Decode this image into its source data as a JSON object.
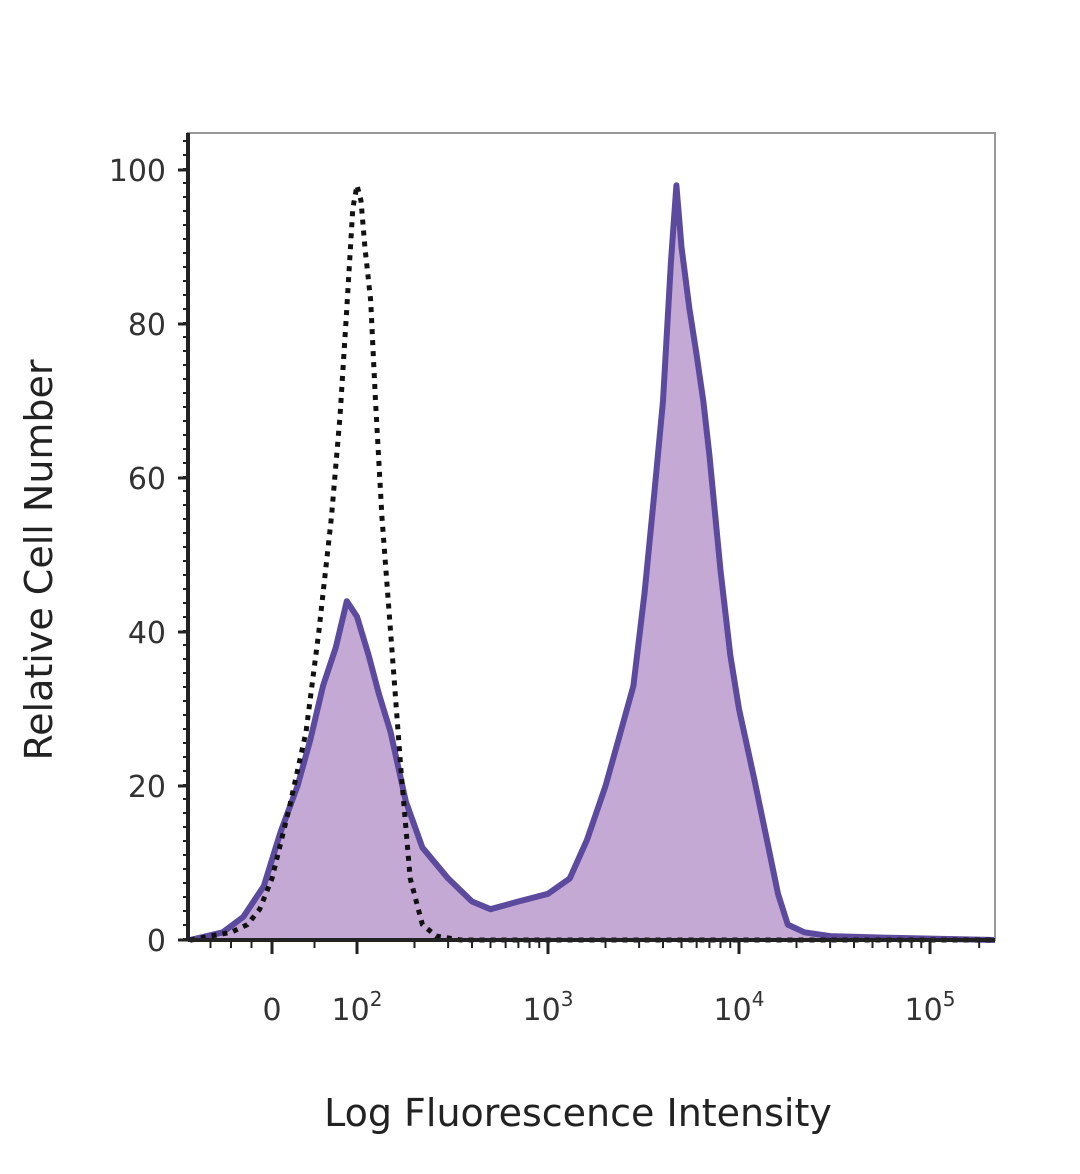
{
  "chart_data": {
    "type": "area",
    "title": "",
    "xlabel": "Log Fluorescence Intensity",
    "ylabel": "Relative Cell Number",
    "x_scale": "biexponential (log above 10^2, linear near 0)",
    "xlim": [
      -200,
      250000
    ],
    "ylim": [
      0,
      100
    ],
    "y_ticks": [
      0,
      20,
      40,
      60,
      80,
      100
    ],
    "x_ticks": [
      {
        "value": 0,
        "base": "0",
        "exp": ""
      },
      {
        "value": 100,
        "base": "10",
        "exp": "2"
      },
      {
        "value": 1000,
        "base": "10",
        "exp": "3"
      },
      {
        "value": 10000,
        "base": "10",
        "exp": "4"
      },
      {
        "value": 100000,
        "base": "10",
        "exp": "5"
      }
    ],
    "grid": false,
    "legend": "none",
    "series": [
      {
        "style": "dotted-black-outline",
        "color": "#111111",
        "points": [
          [
            -200,
            0
          ],
          [
            -150,
            0.5
          ],
          [
            -100,
            1
          ],
          [
            -60,
            2
          ],
          [
            -30,
            4
          ],
          [
            0,
            8
          ],
          [
            20,
            17
          ],
          [
            40,
            27
          ],
          [
            55,
            40
          ],
          [
            70,
            55
          ],
          [
            80,
            68
          ],
          [
            88,
            82
          ],
          [
            95,
            95
          ],
          [
            100,
            98
          ],
          [
            105,
            96
          ],
          [
            110,
            90
          ],
          [
            118,
            83
          ],
          [
            125,
            70
          ],
          [
            135,
            55
          ],
          [
            150,
            40
          ],
          [
            170,
            22
          ],
          [
            190,
            8
          ],
          [
            220,
            2
          ],
          [
            260,
            0.5
          ],
          [
            350,
            0
          ],
          [
            1000,
            0
          ],
          [
            10000,
            0
          ],
          [
            250000,
            0
          ]
        ]
      },
      {
        "style": "purple-filled",
        "color": "#5b4a9e",
        "fill": "#c4a9d4",
        "points": [
          [
            -200,
            0
          ],
          [
            -120,
            1
          ],
          [
            -70,
            3
          ],
          [
            -20,
            7
          ],
          [
            10,
            14
          ],
          [
            30,
            20
          ],
          [
            45,
            26
          ],
          [
            60,
            33
          ],
          [
            75,
            38
          ],
          [
            88,
            44
          ],
          [
            100,
            42
          ],
          [
            115,
            37
          ],
          [
            130,
            32
          ],
          [
            150,
            27
          ],
          [
            180,
            18
          ],
          [
            220,
            12
          ],
          [
            300,
            8
          ],
          [
            400,
            5
          ],
          [
            500,
            4
          ],
          [
            700,
            5
          ],
          [
            1000,
            6
          ],
          [
            1300,
            8
          ],
          [
            1600,
            13
          ],
          [
            2000,
            20
          ],
          [
            2400,
            27
          ],
          [
            2800,
            33
          ],
          [
            3200,
            45
          ],
          [
            3600,
            58
          ],
          [
            4000,
            70
          ],
          [
            4400,
            88
          ],
          [
            4700,
            98
          ],
          [
            5000,
            90
          ],
          [
            5500,
            82
          ],
          [
            6000,
            76
          ],
          [
            6500,
            70
          ],
          [
            7000,
            63
          ],
          [
            8000,
            48
          ],
          [
            9000,
            37
          ],
          [
            10000,
            30
          ],
          [
            12000,
            21
          ],
          [
            14000,
            13
          ],
          [
            16000,
            6
          ],
          [
            18000,
            2
          ],
          [
            22000,
            1
          ],
          [
            30000,
            0.5
          ],
          [
            60000,
            0.3
          ],
          [
            250000,
            0
          ]
        ]
      }
    ]
  }
}
